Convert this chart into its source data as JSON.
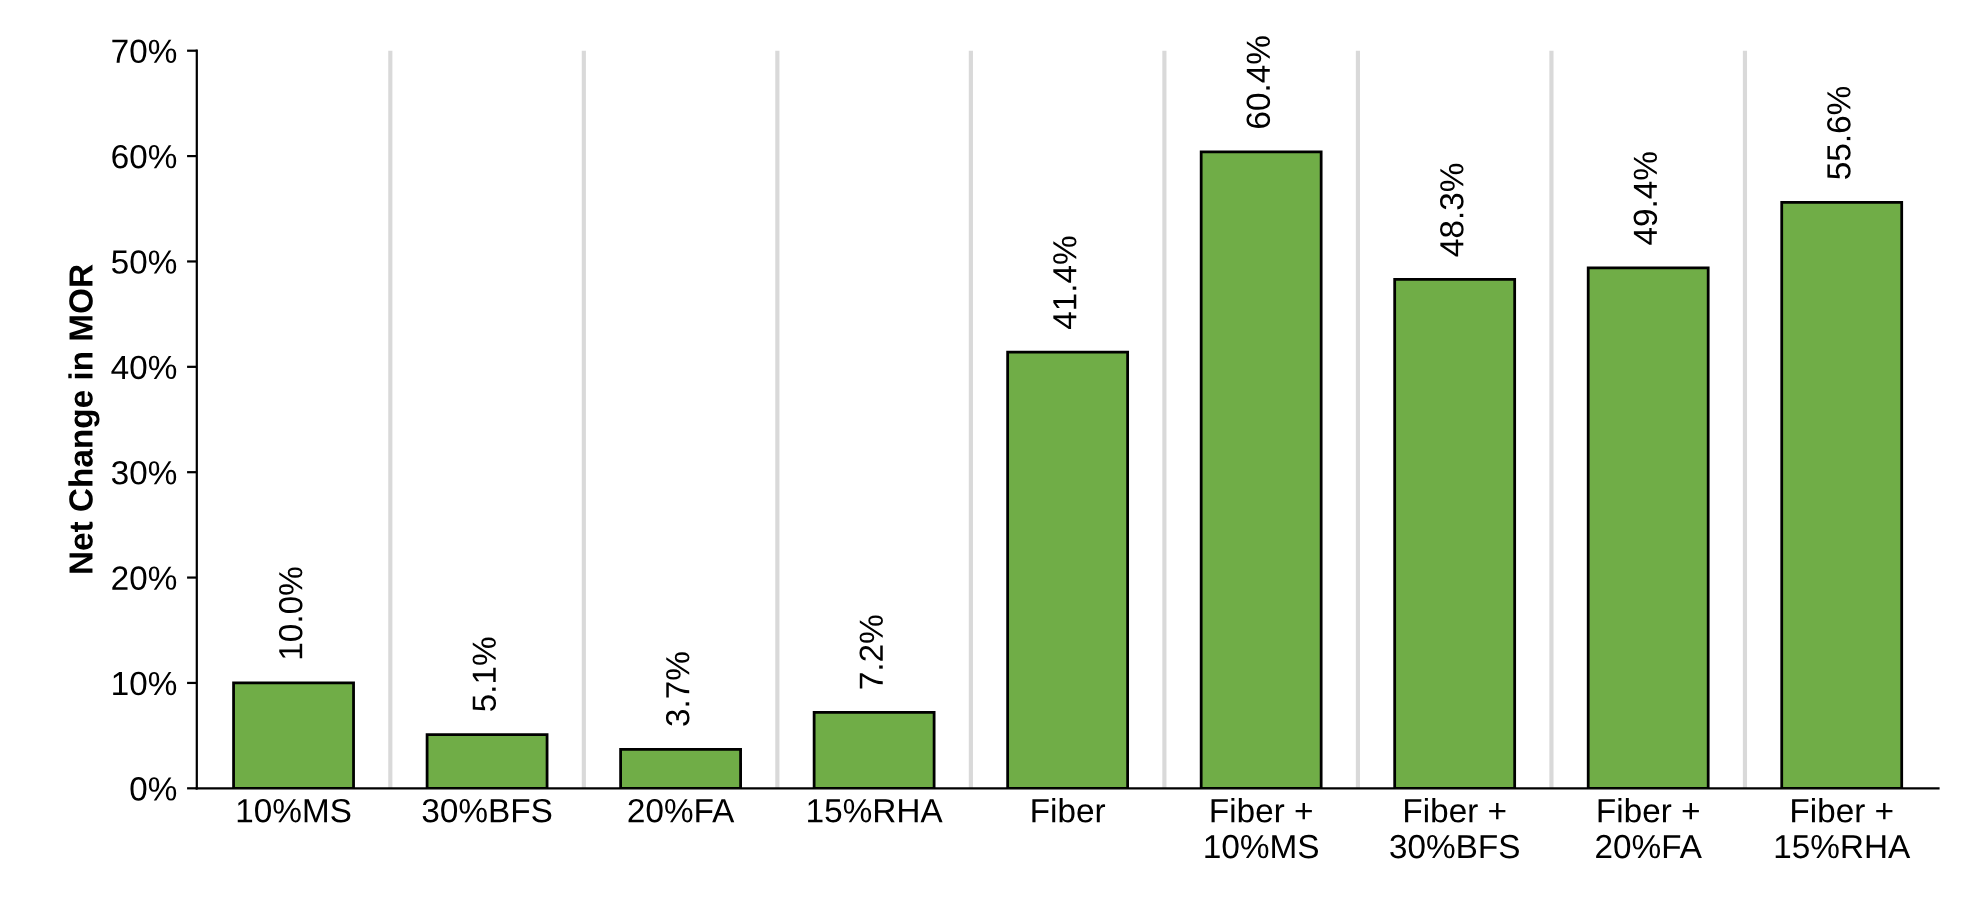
{
  "chart_data": {
    "type": "bar",
    "ylabel": "Net Change in MOR",
    "categories": [
      "10%MS",
      "30%BFS",
      "20%FA",
      "15%RHA",
      "Fiber",
      "Fiber +\n10%MS",
      "Fiber +\n30%BFS",
      "Fiber +\n20%FA",
      "Fiber +\n15%RHA"
    ],
    "values": [
      10.0,
      5.1,
      3.7,
      7.2,
      41.4,
      60.4,
      48.3,
      49.4,
      55.6
    ],
    "value_labels": [
      "10.0%",
      "5.1%",
      "3.7%",
      "7.2%",
      "41.4%",
      "60.4%",
      "48.3%",
      "49.4%",
      "55.6%"
    ],
    "color": "#70ad47",
    "ylim": [
      0,
      70
    ],
    "yticks": [
      {
        "value": 0,
        "label": "0%"
      },
      {
        "value": 10,
        "label": "10%"
      },
      {
        "value": 20,
        "label": "20%"
      },
      {
        "value": 30,
        "label": "30%"
      },
      {
        "value": 40,
        "label": "40%"
      },
      {
        "value": 50,
        "label": "50%"
      },
      {
        "value": 60,
        "label": "60%"
      },
      {
        "value": 70,
        "label": "70%"
      }
    ],
    "grid": "x",
    "legend": false
  }
}
